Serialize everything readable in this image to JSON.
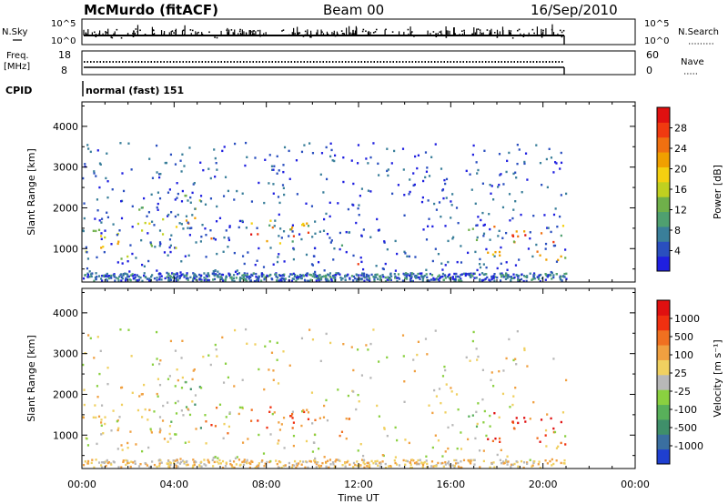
{
  "header": {
    "station": "McMurdo (fitACF)",
    "beam": "Beam 00",
    "date": "16/Sep/2010"
  },
  "top_panels": {
    "nsky": {
      "label_line1": "N.Sky",
      "left_ticks": [
        "10^5",
        "10^0"
      ],
      "right_ticks": [
        "10^5",
        "10^0"
      ],
      "right_label": "N.Search"
    },
    "freq": {
      "label_line1": "Freq.",
      "label_line2": "[MHz]",
      "left_ticks": [
        "18",
        "8"
      ],
      "right_ticks": [
        "60",
        "0"
      ],
      "right_label": "Nave"
    },
    "cpid": {
      "label": "CPID",
      "value": "normal (fast) 151"
    }
  },
  "chart_data": [
    {
      "type": "heatmap",
      "name": "power",
      "ylabel": "Slant Range [km]",
      "yticks": [
        1000,
        2000,
        3000,
        4000
      ],
      "ylim": [
        180,
        4600
      ],
      "xlim": [
        0,
        24
      ],
      "colorbar": {
        "label": "Power [dB]",
        "ticks": [
          "4",
          "8",
          "12",
          "16",
          "20",
          "24",
          "28"
        ],
        "colors": [
          "#1f1fe0",
          "#2a4fbf",
          "#3a7f9a",
          "#4fa070",
          "#6fb04a",
          "#c0d020",
          "#f4d010",
          "#f0a000",
          "#f07010",
          "#f03a10",
          "#e01010"
        ]
      }
    },
    {
      "type": "heatmap",
      "name": "velocity",
      "ylabel": "Slant Range [km]",
      "yticks": [
        1000,
        2000,
        3000,
        4000
      ],
      "ylim": [
        180,
        4600
      ],
      "xlim": [
        0,
        24
      ],
      "colorbar": {
        "label": "Velocity [m s⁻¹]",
        "ticks": [
          "1000",
          "500",
          "100",
          "25",
          "-25",
          "-100",
          "-500",
          "-1000"
        ],
        "colors": [
          "#1f3fd0",
          "#3a6fa0",
          "#3f8f6a",
          "#58b05a",
          "#8ad040",
          "#b8b8b8",
          "#f0d060",
          "#f0a040",
          "#f07020",
          "#f03010",
          "#e01010"
        ]
      }
    }
  ],
  "x_axis": {
    "ticks": [
      "00:00",
      "04:00",
      "08:00",
      "12:00",
      "16:00",
      "20:00",
      "00:00"
    ],
    "label": "Time UT"
  }
}
